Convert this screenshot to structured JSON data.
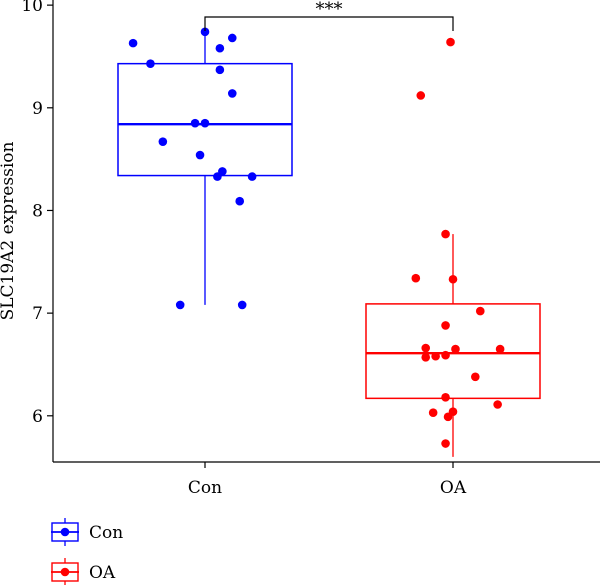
{
  "chart_data": {
    "type": "box",
    "title": "",
    "xlabel": "",
    "ylabel": "SLC19A2 expression",
    "ylim": [
      5.55,
      10.05
    ],
    "yticks": [
      6,
      7,
      8,
      9,
      10
    ],
    "categories": [
      "Con",
      "OA"
    ],
    "significance": "***",
    "series": [
      {
        "name": "Con",
        "color": "#0000ff",
        "box": {
          "q1": 8.34,
          "median": 8.84,
          "q3": 9.43,
          "whisker_low": 7.08,
          "whisker_high": 9.74
        },
        "points": [
          {
            "jitter": -0.29,
            "value": 9.63
          },
          {
            "jitter": -0.22,
            "value": 9.43
          },
          {
            "jitter": 0.0,
            "value": 9.74
          },
          {
            "jitter": 0.11,
            "value": 9.68
          },
          {
            "jitter": 0.06,
            "value": 9.58
          },
          {
            "jitter": 0.06,
            "value": 9.37
          },
          {
            "jitter": 0.11,
            "value": 9.14
          },
          {
            "jitter": -0.04,
            "value": 8.85
          },
          {
            "jitter": 0.0,
            "value": 8.85
          },
          {
            "jitter": -0.17,
            "value": 8.67
          },
          {
            "jitter": -0.02,
            "value": 8.54
          },
          {
            "jitter": 0.07,
            "value": 8.38
          },
          {
            "jitter": 0.05,
            "value": 8.33
          },
          {
            "jitter": 0.19,
            "value": 8.33
          },
          {
            "jitter": 0.14,
            "value": 8.09
          },
          {
            "jitter": -0.1,
            "value": 7.08
          },
          {
            "jitter": 0.15,
            "value": 7.08
          }
        ]
      },
      {
        "name": "OA",
        "color": "#ff0000",
        "box": {
          "q1": 6.17,
          "median": 6.61,
          "q3": 7.09,
          "whisker_low": 5.6,
          "whisker_high": 7.77
        },
        "points": [
          {
            "jitter": -0.01,
            "value": 9.64
          },
          {
            "jitter": -0.13,
            "value": 9.12
          },
          {
            "jitter": -0.03,
            "value": 7.77
          },
          {
            "jitter": -0.15,
            "value": 7.34
          },
          {
            "jitter": 0.0,
            "value": 7.33
          },
          {
            "jitter": 0.11,
            "value": 7.02
          },
          {
            "jitter": -0.03,
            "value": 6.88
          },
          {
            "jitter": -0.11,
            "value": 6.66
          },
          {
            "jitter": -0.11,
            "value": 6.57
          },
          {
            "jitter": -0.07,
            "value": 6.58
          },
          {
            "jitter": -0.03,
            "value": 6.59
          },
          {
            "jitter": 0.01,
            "value": 6.65
          },
          {
            "jitter": 0.19,
            "value": 6.65
          },
          {
            "jitter": 0.09,
            "value": 6.38
          },
          {
            "jitter": -0.03,
            "value": 6.18
          },
          {
            "jitter": 0.18,
            "value": 6.11
          },
          {
            "jitter": -0.08,
            "value": 6.03
          },
          {
            "jitter": -0.02,
            "value": 5.99
          },
          {
            "jitter": 0.0,
            "value": 6.04
          },
          {
            "jitter": -0.03,
            "value": 5.73
          }
        ]
      }
    ],
    "legend": {
      "position": "bottom-left",
      "entries": [
        "Con",
        "OA"
      ]
    }
  }
}
